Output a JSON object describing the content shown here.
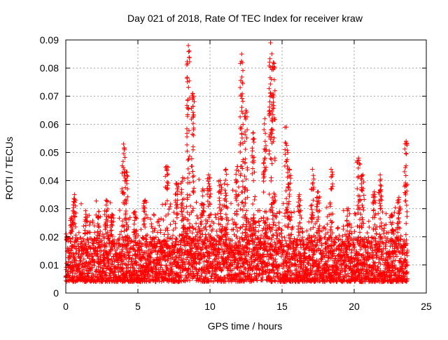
{
  "chart_data": {
    "type": "scatter",
    "title": "Day 021 of 2018, Rate Of TEC Index for receiver kraw",
    "xlabel": "GPS time / hours",
    "ylabel": "ROTI / TECUs",
    "xlim": [
      0,
      25
    ],
    "ylim": [
      0,
      0.09
    ],
    "grid": true,
    "marker": "+",
    "color": "#ff0000",
    "xticks": [
      0,
      5,
      10,
      15,
      20,
      25
    ],
    "xtick_labels": [
      "0",
      "5",
      "10",
      "15",
      "20",
      "25"
    ],
    "yticks": [
      0,
      0.01,
      0.02,
      0.03,
      0.04,
      0.05,
      0.06,
      0.07,
      0.08,
      0.09
    ],
    "ytick_labels": [
      "0",
      "0.01",
      "0.02",
      "0.03",
      "0.04",
      "0.05",
      "0.06",
      "0.07",
      "0.08",
      "0.09"
    ],
    "x_data_range": [
      0.0,
      23.7
    ],
    "baseline_band": [
      0.004,
      0.02
    ],
    "bursts": [
      {
        "x": 0.4,
        "peak": 0.027
      },
      {
        "x": 0.6,
        "peak": 0.035
      },
      {
        "x": 1.4,
        "peak": 0.028
      },
      {
        "x": 2.3,
        "peak": 0.029
      },
      {
        "x": 2.8,
        "peak": 0.033
      },
      {
        "x": 3.2,
        "peak": 0.028
      },
      {
        "x": 4.0,
        "peak": 0.053
      },
      {
        "x": 4.2,
        "peak": 0.043
      },
      {
        "x": 4.8,
        "peak": 0.029
      },
      {
        "x": 5.5,
        "peak": 0.033
      },
      {
        "x": 7.0,
        "peak": 0.045
      },
      {
        "x": 7.7,
        "peak": 0.039
      },
      {
        "x": 8.1,
        "peak": 0.041
      },
      {
        "x": 8.5,
        "peak": 0.088
      },
      {
        "x": 8.8,
        "peak": 0.071
      },
      {
        "x": 9.5,
        "peak": 0.037
      },
      {
        "x": 9.9,
        "peak": 0.042
      },
      {
        "x": 10.7,
        "peak": 0.04
      },
      {
        "x": 11.1,
        "peak": 0.044
      },
      {
        "x": 11.9,
        "peak": 0.045
      },
      {
        "x": 12.2,
        "peak": 0.085
      },
      {
        "x": 12.5,
        "peak": 0.065
      },
      {
        "x": 13.0,
        "peak": 0.057
      },
      {
        "x": 13.8,
        "peak": 0.062
      },
      {
        "x": 14.2,
        "peak": 0.089
      },
      {
        "x": 14.4,
        "peak": 0.082
      },
      {
        "x": 15.3,
        "peak": 0.059
      },
      {
        "x": 15.5,
        "peak": 0.044
      },
      {
        "x": 16.2,
        "peak": 0.035
      },
      {
        "x": 17.1,
        "peak": 0.044
      },
      {
        "x": 17.5,
        "peak": 0.036
      },
      {
        "x": 18.4,
        "peak": 0.044
      },
      {
        "x": 19.6,
        "peak": 0.03
      },
      {
        "x": 20.3,
        "peak": 0.048
      },
      {
        "x": 20.6,
        "peak": 0.042
      },
      {
        "x": 21.4,
        "peak": 0.036
      },
      {
        "x": 21.8,
        "peak": 0.042
      },
      {
        "x": 22.6,
        "peak": 0.028
      },
      {
        "x": 23.1,
        "peak": 0.034
      },
      {
        "x": 23.6,
        "peak": 0.054
      }
    ]
  }
}
